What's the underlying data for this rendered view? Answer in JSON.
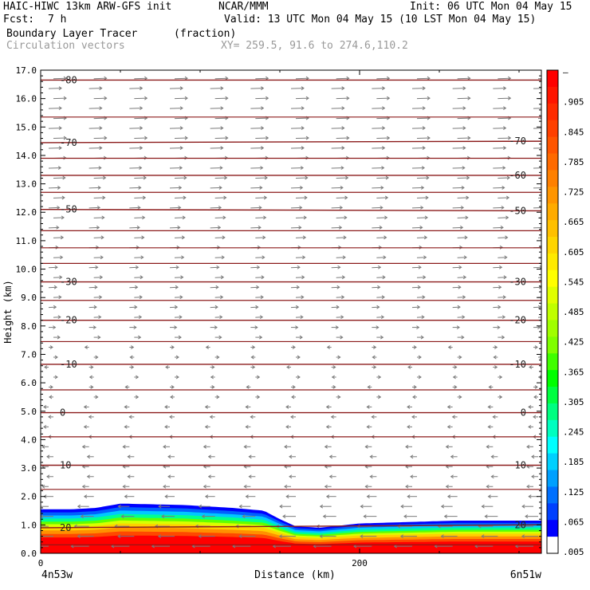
{
  "header": {
    "model": "HAIC-HIWC 13km ARW-GFS init",
    "org": "NCAR/MMM",
    "init": "Init: 06 UTC Mon 04 May 15",
    "fcst_label": "Fcst:",
    "fcst_value": "7 h",
    "valid": "Valid: 13 UTC Mon 04 May 15 (10 LST Mon 04 May 15)",
    "field": "Boundary Layer Tracer",
    "field_units": "(fraction)",
    "vectors": "Circulation vectors",
    "xy": "XY= 259.5, 91.6 to 274.6,110.2"
  },
  "chart_data": {
    "type": "heatmap",
    "xlabel": "Distance (km)",
    "ylabel": "Height (km)",
    "xlim": [
      0,
      314
    ],
    "ylim": [
      0,
      17
    ],
    "x_ticks": [
      {
        "value": 0,
        "label": "0"
      },
      {
        "value": 200,
        "label": "200"
      }
    ],
    "x_endpoints": {
      "left": "4n53w",
      "right": "6n51w"
    },
    "y_ticks": [
      "0.0",
      "1.0",
      "2.0",
      "3.0",
      "4.0",
      "5.0",
      "6.0",
      "7.0",
      "8.0",
      "9.0",
      "10.0",
      "11.0",
      "12.0",
      "13.0",
      "14.0",
      "15.0",
      "16.0",
      "17.0"
    ],
    "tracer_top_km": {
      "x": [
        0,
        20,
        35,
        50,
        90,
        120,
        140,
        150,
        160,
        175,
        200,
        230,
        260,
        290,
        314
      ],
      "y": [
        1.55,
        1.55,
        1.6,
        1.75,
        1.7,
        1.6,
        1.5,
        1.2,
        0.95,
        0.9,
        1.05,
        1.1,
        1.15,
        1.15,
        1.15
      ]
    },
    "colorbar": {
      "labels": [
        "–",
        ".905",
        ".845",
        ".785",
        ".725",
        ".665",
        ".605",
        ".545",
        ".485",
        ".425",
        ".365",
        ".305",
        ".245",
        ".185",
        ".125",
        ".065",
        ".005"
      ],
      "colors": [
        "#ff0000",
        "#ff1500",
        "#ff2b00",
        "#ff4000",
        "#ff5500",
        "#ff6a00",
        "#ff8000",
        "#ff9500",
        "#ffab00",
        "#ffc000",
        "#ffd500",
        "#ffea00",
        "#ffff00",
        "#e0ff00",
        "#c0ff00",
        "#a0ff00",
        "#80ff00",
        "#40ff00",
        "#00ff00",
        "#00ff40",
        "#00ff80",
        "#00ffc0",
        "#00ffff",
        "#00d0ff",
        "#00a0ff",
        "#0070ff",
        "#0040ff",
        "#0000ff",
        "#ffffff"
      ]
    },
    "temperature_contours": [
      {
        "label": "-80",
        "km": [
          16.65,
          16.65
        ],
        "label_pos": "left"
      },
      {
        "label": "-70",
        "km": [
          14.45,
          14.5
        ],
        "label_pos": "both"
      },
      {
        "label": "-60",
        "km": [
          13.3,
          13.3
        ],
        "label_pos": "right"
      },
      {
        "label": "-50",
        "km": [
          12.1,
          12.05
        ],
        "label_pos": "both"
      },
      {
        "label": "-30",
        "km": [
          9.55,
          9.55
        ],
        "label_pos": "both"
      },
      {
        "label": "-20",
        "km": [
          8.2,
          8.2
        ],
        "label_pos": "both"
      },
      {
        "label": "-10",
        "km": [
          6.65,
          6.65
        ],
        "label_pos": "both"
      },
      {
        "label": "0",
        "km": [
          4.95,
          4.95
        ],
        "label_pos": "both"
      },
      {
        "label": "10",
        "km": [
          3.1,
          3.1
        ],
        "label_pos": "both"
      },
      {
        "label": "20",
        "km": [
          0.9,
          1.0
        ],
        "label_pos": "both"
      }
    ],
    "other_contours_km": [
      15.35,
      13.9,
      12.7,
      11.35,
      10.75,
      10.2,
      8.9,
      7.45,
      5.75,
      4.1,
      2.25,
      0.3
    ]
  }
}
